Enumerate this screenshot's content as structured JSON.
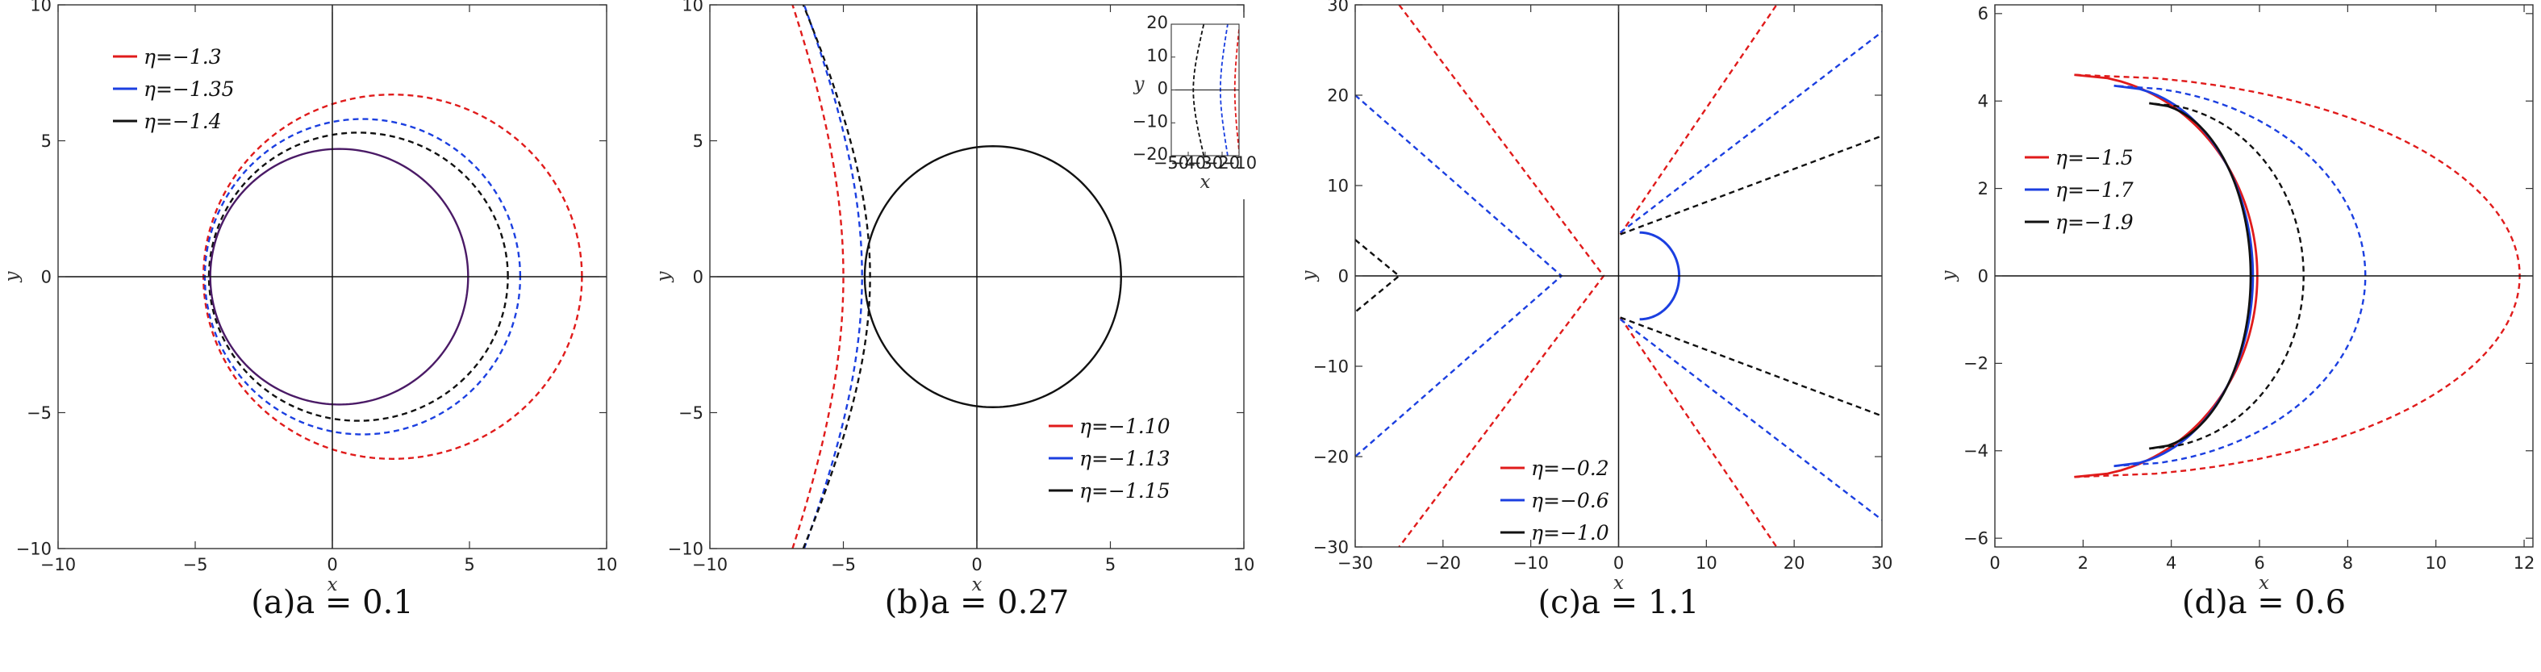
{
  "chart_data": [
    {
      "type": "line",
      "panel": "a",
      "caption": "(a)a = 0.1",
      "xlabel": "x",
      "ylabel": "y",
      "xlim": [
        -10,
        10
      ],
      "ylim": [
        -10,
        10
      ],
      "xticks": [
        -10,
        -5,
        0,
        5,
        10
      ],
      "yticks": [
        -10,
        -5,
        0,
        5,
        10
      ],
      "grid": false,
      "legend_position": "top-left",
      "series": [
        {
          "name": "η=−1.3",
          "color": "#e01b1b",
          "style": "dashed",
          "shape": "ellipse",
          "cx": 2.2,
          "cy": 0,
          "rx": 6.9,
          "ry": 6.7
        },
        {
          "name": "η=−1.35",
          "color": "#1b3fe0",
          "style": "dashed",
          "shape": "ellipse",
          "cx": 1.1,
          "cy": 0,
          "rx": 5.75,
          "ry": 5.8
        },
        {
          "name": "η=−1.4",
          "color": "#111111",
          "style": "dashed",
          "shape": "ellipse",
          "cx": 0.95,
          "cy": 0,
          "rx": 5.45,
          "ry": 5.3
        },
        {
          "name": "",
          "color": "#4a1a66",
          "style": "solid",
          "shape": "ellipse",
          "cx": 0.25,
          "cy": 0,
          "rx": 4.7,
          "ry": 4.7
        }
      ]
    },
    {
      "type": "line",
      "panel": "b",
      "caption": "(b)a = 0.27",
      "xlabel": "x",
      "ylabel": "y",
      "xlim": [
        -10,
        10
      ],
      "ylim": [
        -10,
        10
      ],
      "xticks": [
        -10,
        -5,
        0,
        5,
        10
      ],
      "yticks": [
        -10,
        -5,
        0,
        5,
        10
      ],
      "grid": false,
      "legend_position": "bottom-right",
      "series": [
        {
          "name": "η=−1.10",
          "color": "#e01b1b",
          "style": "dashed",
          "shape": "hyperbola",
          "vertex": -5.0,
          "a": 5.0,
          "b": 10.5
        },
        {
          "name": "η=−1.13",
          "color": "#1b3fe0",
          "style": "dashed",
          "shape": "hyperbola",
          "vertex": -4.3,
          "a": 4.8,
          "b": 9.5
        },
        {
          "name": "η=−1.15",
          "color": "#111111",
          "style": "dashed",
          "shape": "hyperbola",
          "vertex": -4.0,
          "a": 4.6,
          "b": 8.5
        },
        {
          "name": "",
          "color": "#111111",
          "style": "solid",
          "shape": "ellipse",
          "cx": 0.6,
          "cy": 0,
          "rx": 4.8,
          "ry": 4.8
        }
      ],
      "inset": {
        "xlabel": "x",
        "ylabel": "y",
        "xlim": [
          -50,
          -10
        ],
        "ylim": [
          -20,
          20
        ],
        "xticks": [
          -50,
          -40,
          -30,
          -20,
          -10
        ],
        "yticks": [
          -20,
          -10,
          0,
          10,
          20
        ],
        "series": [
          {
            "color": "#e01b1b",
            "vertex": -12.5,
            "a": 3.0,
            "b": 12.0
          },
          {
            "color": "#1b3fe0",
            "vertex": -21.0,
            "a": 4.0,
            "b": 11.0
          },
          {
            "color": "#111111",
            "vertex": -37.0,
            "a": 5.0,
            "b": 10.0
          }
        ]
      }
    },
    {
      "type": "line",
      "panel": "c",
      "caption": "(c)a = 1.1",
      "xlabel": "x",
      "ylabel": "y",
      "xlim": [
        -30,
        30
      ],
      "ylim": [
        -30,
        30
      ],
      "xticks": [
        -30,
        -20,
        -10,
        0,
        10,
        20,
        30
      ],
      "yticks": [
        -30,
        -20,
        -10,
        0,
        10,
        20,
        30
      ],
      "grid": false,
      "legend_position": "bottom-center",
      "series": [
        {
          "name": "η=−0.2",
          "color": "#e01b1b",
          "style": "dashed",
          "shape": "polyline",
          "paths": [
            [
              [
                -25,
                30
              ],
              [
                -1.7,
                0
              ],
              [
                -25,
                -30
              ]
            ],
            [
              [
                0.2,
                4.6
              ],
              [
                18,
                30
              ]
            ],
            [
              [
                0.2,
                -4.6
              ],
              [
                18,
                -30
              ]
            ]
          ]
        },
        {
          "name": "η=−0.6",
          "color": "#1b3fe0",
          "style": "solid",
          "shape": "polyline",
          "paths": [
            [
              [
                -30,
                20
              ],
              [
                -6.5,
                0
              ],
              [
                -30,
                -20
              ]
            ],
            [
              [
                0.2,
                4.8
              ],
              [
                30,
                27
              ]
            ],
            [
              [
                0.2,
                -4.8
              ],
              [
                30,
                -27
              ]
            ]
          ],
          "path_styles": [
            "dashed",
            "dashed",
            "dashed"
          ],
          "arc": {
            "cx": 2.4,
            "cy": 0,
            "rx": 4.5,
            "ry": 4.8
          }
        },
        {
          "name": "η=−1.0",
          "color": "#111111",
          "style": "dashed",
          "shape": "polyline",
          "paths": [
            [
              [
                -30,
                4
              ],
              [
                -25,
                0
              ],
              [
                -30,
                -4
              ]
            ],
            [
              [
                0.2,
                4.6
              ],
              [
                30,
                15.5
              ]
            ],
            [
              [
                0.2,
                -4.6
              ],
              [
                30,
                -15.5
              ]
            ]
          ]
        }
      ]
    },
    {
      "type": "line",
      "panel": "d",
      "caption": "(d)a = 0.6",
      "xlabel": "x",
      "ylabel": "y",
      "xlim": [
        0,
        12.2
      ],
      "ylim": [
        -6.2,
        6.2
      ],
      "xticks": [
        0,
        2,
        4,
        6,
        8,
        10,
        12
      ],
      "yticks": [
        -6,
        -4,
        -2,
        0,
        2,
        4,
        6
      ],
      "grid": false,
      "legend_position": "top-left",
      "series": [
        {
          "name": "η=−1.5",
          "color": "#e01b1b",
          "style": "dashed",
          "shape": "crescent",
          "outer": {
            "x0": 1.8,
            "tip_y": 4.6,
            "xmax": 11.9
          },
          "inner": {
            "x0": 1.8,
            "tip_y": 4.6,
            "xmax": 5.95
          }
        },
        {
          "name": "η=−1.7",
          "color": "#1b3fe0",
          "style": "dashed",
          "shape": "crescent",
          "outer": {
            "x0": 2.7,
            "tip_y": 4.35,
            "xmax": 8.4
          },
          "inner": {
            "x0": 2.7,
            "tip_y": 4.35,
            "xmax": 5.85
          }
        },
        {
          "name": "η=−1.9",
          "color": "#111111",
          "style": "dashed",
          "shape": "crescent",
          "outer": {
            "x0": 3.5,
            "tip_y": 3.95,
            "xmax": 7.0
          },
          "inner": {
            "x0": 3.5,
            "tip_y": 3.95,
            "xmax": 5.8
          }
        }
      ]
    }
  ]
}
